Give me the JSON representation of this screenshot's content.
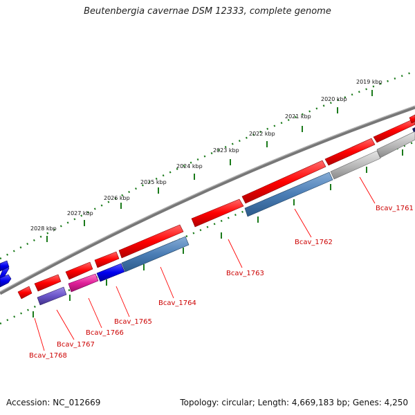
{
  "title": "Beutenbergia cavernae DSM 12333, complete genome",
  "footer": {
    "accession": "Accession: NC_012669",
    "topology": "Topology: circular; Length: 4,669,183 bp; Genes: 4,250"
  },
  "ruler": {
    "ticks": [
      "2028 kbp",
      "2027 kbp",
      "2026 kbp",
      "2025 kbp",
      "2024 kbp",
      "2023 kbp",
      "2022 kbp",
      "2021 kbp",
      "2020 kbp",
      "2019 kbp"
    ]
  },
  "genes": [
    "Bcav_1768",
    "Bcav_1767",
    "Bcav_1766",
    "Bcav_1765",
    "Bcav_1764",
    "Bcav_1763",
    "Bcav_1762",
    "Bcav_1761"
  ],
  "colors": {
    "cds_forward": "#ff0000",
    "cds_reverse": "#0000ee",
    "gene_blue": "#4a7db5",
    "gene_magenta": "#e0209a",
    "gene_purple": "#6a55c8",
    "gene_grey": "#bbbbbb",
    "backbone": "#777777",
    "ruler": "#1a7a1a",
    "label": "#cc0000"
  }
}
